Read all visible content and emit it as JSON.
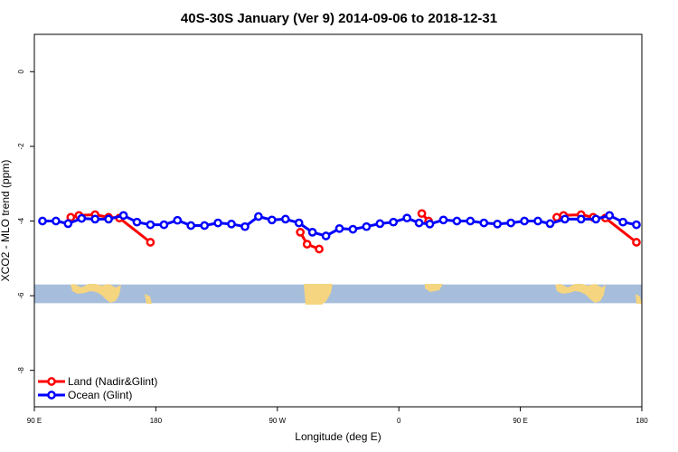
{
  "chart_data": {
    "type": "line",
    "title": "40S-30S January (Ver 9)   2014-09-06 to 2018-12-31",
    "xlabel": "Longitude (deg E)",
    "ylabel": "XCO2 - MLO trend (ppm)",
    "xlim": [
      90,
      540
    ],
    "ylim": [
      -9,
      1
    ],
    "x_ticks": [
      {
        "value": 90,
        "label": "90 E"
      },
      {
        "value": 180,
        "label": "180"
      },
      {
        "value": 270,
        "label": "90 W"
      },
      {
        "value": 360,
        "label": "0"
      },
      {
        "value": 450,
        "label": "90 E"
      },
      {
        "value": 540,
        "label": "180"
      }
    ],
    "y_ticks": [
      {
        "value": 0,
        "label": "0"
      },
      {
        "value": -2,
        "label": "-2"
      },
      {
        "value": -4,
        "label": "-4"
      },
      {
        "value": -6,
        "label": "-6"
      },
      {
        "value": -8,
        "label": "-8"
      }
    ],
    "map_band": {
      "y_range": [
        -6.2,
        -5.7
      ],
      "ocean_color": "#a6bddb",
      "land_color": "#f5d580"
    },
    "series": [
      {
        "name": "Land (Nadir&Glint)",
        "color": "#ff0000",
        "segments": [
          [
            {
              "x": 117,
              "y": -3.9
            },
            {
              "x": 123,
              "y": -3.85
            },
            {
              "x": 135,
              "y": -3.83
            },
            {
              "x": 145,
              "y": -3.9
            },
            {
              "x": 153,
              "y": -3.92
            },
            {
              "x": 176,
              "y": -4.57
            }
          ],
          [
            {
              "x": 287,
              "y": -4.3
            },
            {
              "x": 292,
              "y": -4.62
            },
            {
              "x": 301,
              "y": -4.75
            }
          ],
          [
            {
              "x": 377,
              "y": -3.8
            },
            {
              "x": 382,
              "y": -4.0
            }
          ],
          [
            {
              "x": 477,
              "y": -3.9
            },
            {
              "x": 482,
              "y": -3.85
            },
            {
              "x": 495,
              "y": -3.83
            },
            {
              "x": 504,
              "y": -3.9
            },
            {
              "x": 513,
              "y": -3.92
            },
            {
              "x": 536,
              "y": -4.57
            }
          ]
        ]
      },
      {
        "name": "Ocean (Glint)",
        "color": "#0000ff",
        "segments": [
          [
            {
              "x": 96,
              "y": -4.0
            },
            {
              "x": 106,
              "y": -4.0
            },
            {
              "x": 115,
              "y": -4.07
            },
            {
              "x": 125,
              "y": -3.93
            },
            {
              "x": 135,
              "y": -3.95
            },
            {
              "x": 145,
              "y": -3.95
            },
            {
              "x": 156,
              "y": -3.85
            },
            {
              "x": 166,
              "y": -4.03
            },
            {
              "x": 176,
              "y": -4.1
            },
            {
              "x": 186,
              "y": -4.1
            },
            {
              "x": 196,
              "y": -3.98
            },
            {
              "x": 206,
              "y": -4.12
            },
            {
              "x": 216,
              "y": -4.12
            },
            {
              "x": 226,
              "y": -4.05
            },
            {
              "x": 236,
              "y": -4.08
            },
            {
              "x": 246,
              "y": -4.15
            },
            {
              "x": 256,
              "y": -3.88
            },
            {
              "x": 266,
              "y": -3.97
            },
            {
              "x": 276,
              "y": -3.95
            },
            {
              "x": 286,
              "y": -4.05
            },
            {
              "x": 296,
              "y": -4.3
            },
            {
              "x": 306,
              "y": -4.4
            },
            {
              "x": 316,
              "y": -4.2
            },
            {
              "x": 326,
              "y": -4.22
            },
            {
              "x": 336,
              "y": -4.15
            },
            {
              "x": 346,
              "y": -4.07
            },
            {
              "x": 356,
              "y": -4.03
            },
            {
              "x": 366,
              "y": -3.92
            },
            {
              "x": 375,
              "y": -4.05
            },
            {
              "x": 383,
              "y": -4.08
            },
            {
              "x": 393,
              "y": -3.97
            },
            {
              "x": 403,
              "y": -4.0
            },
            {
              "x": 413,
              "y": -4.0
            },
            {
              "x": 423,
              "y": -4.05
            },
            {
              "x": 433,
              "y": -4.08
            },
            {
              "x": 443,
              "y": -4.05
            },
            {
              "x": 453,
              "y": -4.0
            },
            {
              "x": 463,
              "y": -4.0
            },
            {
              "x": 472,
              "y": -4.07
            },
            {
              "x": 483,
              "y": -3.95
            },
            {
              "x": 495,
              "y": -3.95
            },
            {
              "x": 506,
              "y": -3.95
            },
            {
              "x": 516,
              "y": -3.85
            },
            {
              "x": 526,
              "y": -4.03
            },
            {
              "x": 536,
              "y": -4.1
            }
          ]
        ]
      }
    ],
    "legend": {
      "position": "bottom-left"
    }
  }
}
